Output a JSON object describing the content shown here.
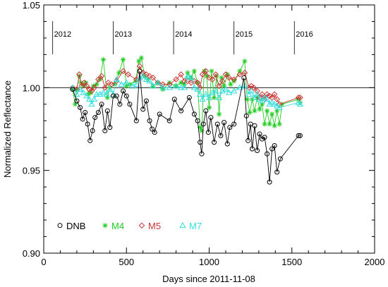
{
  "chart_data": {
    "type": "line",
    "xlabel": "Days since 2011-11-08",
    "ylabel": "Normalized Reflectance",
    "xlim": [
      0,
      2000
    ],
    "ylim": [
      0.9,
      1.05
    ],
    "xticks": [
      0,
      500,
      1000,
      1500,
      2000
    ],
    "yticks": [
      0.9,
      0.95,
      1.0,
      1.05
    ],
    "xtick_labels": [
      "0",
      "500",
      "1000",
      "1500",
      "2000"
    ],
    "ytick_labels": [
      "0.90",
      "0.95",
      "1.00",
      "1.05"
    ],
    "reference_line": 1.0,
    "year_markers": [
      {
        "label": "2012",
        "x": 54
      },
      {
        "label": "2013",
        "x": 420
      },
      {
        "label": "2014",
        "x": 785
      },
      {
        "label": "2015",
        "x": 1150
      },
      {
        "label": "2016",
        "x": 1515
      }
    ],
    "legend_position": "bottom-left",
    "series": [
      {
        "name": "DNB",
        "color": "#000000",
        "marker": "circle",
        "points": [
          [
            175,
            0.999
          ],
          [
            200,
            0.992
          ],
          [
            220,
            0.988
          ],
          [
            235,
            0.981
          ],
          [
            250,
            0.985
          ],
          [
            265,
            0.978
          ],
          [
            280,
            0.968
          ],
          [
            295,
            0.974
          ],
          [
            310,
            0.982
          ],
          [
            330,
            0.985
          ],
          [
            350,
            0.99
          ],
          [
            370,
            0.974
          ],
          [
            385,
            0.986
          ],
          [
            400,
            0.976
          ],
          [
            420,
            0.995
          ],
          [
            440,
            0.995
          ],
          [
            460,
            0.99
          ],
          [
            480,
            0.998
          ],
          [
            500,
            0.995
          ],
          [
            520,
            0.99
          ],
          [
            560,
            0.98
          ],
          [
            580,
            1.01
          ],
          [
            600,
            0.987
          ],
          [
            620,
            0.992
          ],
          [
            640,
            0.98
          ],
          [
            655,
            0.975
          ],
          [
            670,
            0.973
          ],
          [
            700,
            0.984
          ],
          [
            760,
            0.98
          ],
          [
            790,
            0.993
          ],
          [
            830,
            0.986
          ],
          [
            880,
            0.994
          ],
          [
            910,
            0.984
          ],
          [
            930,
            0.98
          ],
          [
            945,
            0.967
          ],
          [
            955,
            0.96
          ],
          [
            965,
            0.978
          ],
          [
            980,
            0.986
          ],
          [
            995,
            0.973
          ],
          [
            1010,
            0.982
          ],
          [
            1030,
            0.967
          ],
          [
            1050,
            0.978
          ],
          [
            1070,
            0.971
          ],
          [
            1090,
            0.979
          ],
          [
            1110,
            0.966
          ],
          [
            1125,
            0.976
          ],
          [
            1150,
            0.978
          ],
          [
            1210,
            1.006
          ],
          [
            1225,
            0.983
          ],
          [
            1235,
            0.968
          ],
          [
            1250,
            0.978
          ],
          [
            1260,
            0.963
          ],
          [
            1275,
            0.977
          ],
          [
            1290,
            0.962
          ],
          [
            1305,
            0.972
          ],
          [
            1320,
            0.969
          ],
          [
            1335,
            0.97
          ],
          [
            1350,
            0.96
          ],
          [
            1365,
            0.943
          ],
          [
            1380,
            0.963
          ],
          [
            1395,
            0.965
          ],
          [
            1410,
            0.949
          ],
          [
            1430,
            0.957
          ],
          [
            1540,
            0.971
          ],
          [
            1550,
            0.971
          ]
        ]
      },
      {
        "name": "M4",
        "color": "#22cc22",
        "marker": "asterisk",
        "points": [
          [
            175,
            0.999
          ],
          [
            190,
            0.99
          ],
          [
            200,
            0.999
          ],
          [
            215,
            1.007
          ],
          [
            225,
            1.003
          ],
          [
            240,
            1.001
          ],
          [
            255,
            1.003
          ],
          [
            270,
            0.996
          ],
          [
            285,
            0.997
          ],
          [
            300,
            1.001
          ],
          [
            320,
            1.002
          ],
          [
            340,
            1.005
          ],
          [
            360,
            1.017
          ],
          [
            385,
            0.994
          ],
          [
            400,
            1.0
          ],
          [
            430,
            1.002
          ],
          [
            455,
            1.009
          ],
          [
            480,
            1.017
          ],
          [
            500,
            1.001
          ],
          [
            520,
            1.002
          ],
          [
            555,
            1.004
          ],
          [
            575,
            1.016
          ],
          [
            590,
            1.018
          ],
          [
            610,
            1.007
          ],
          [
            630,
            1.005
          ],
          [
            660,
            1.001
          ],
          [
            690,
            1.003
          ],
          [
            720,
            0.999
          ],
          [
            760,
            1.003
          ],
          [
            800,
            1.001
          ],
          [
            830,
            1.003
          ],
          [
            850,
            1.002
          ],
          [
            870,
            1.009
          ],
          [
            890,
            1.006
          ],
          [
            910,
            1.01
          ],
          [
            930,
            1.003
          ],
          [
            945,
            0.976
          ],
          [
            955,
            0.974
          ],
          [
            970,
            1.01
          ],
          [
            985,
            1.007
          ],
          [
            1000,
            0.988
          ],
          [
            1015,
            1.01
          ],
          [
            1030,
            0.994
          ],
          [
            1045,
            1.007
          ],
          [
            1060,
            0.984
          ],
          [
            1075,
            1.006
          ],
          [
            1090,
            1.001
          ],
          [
            1110,
            1.008
          ],
          [
            1130,
            1.002
          ],
          [
            1150,
            1.004
          ],
          [
            1185,
            1.01
          ],
          [
            1215,
            1.016
          ],
          [
            1230,
            0.993
          ],
          [
            1245,
            0.985
          ],
          [
            1260,
            0.993
          ],
          [
            1275,
            0.986
          ],
          [
            1290,
            0.994
          ],
          [
            1305,
            0.987
          ],
          [
            1320,
            0.99
          ],
          [
            1335,
            0.978
          ],
          [
            1350,
            0.986
          ],
          [
            1365,
            0.978
          ],
          [
            1380,
            0.984
          ],
          [
            1395,
            0.977
          ],
          [
            1410,
            0.986
          ],
          [
            1425,
            0.978
          ],
          [
            1440,
            0.99
          ],
          [
            1540,
            0.993
          ],
          [
            1550,
            0.991
          ]
        ]
      },
      {
        "name": "M5",
        "color": "#cc3333",
        "marker": "diamond",
        "points": [
          [
            175,
            1.0
          ],
          [
            200,
            0.999
          ],
          [
            215,
            1.008
          ],
          [
            230,
            1.001
          ],
          [
            245,
            1.003
          ],
          [
            260,
            1.001
          ],
          [
            275,
            0.999
          ],
          [
            290,
            0.998
          ],
          [
            305,
            1.0
          ],
          [
            330,
            1.005
          ],
          [
            350,
            1.007
          ],
          [
            370,
            1.0
          ],
          [
            390,
            1.003
          ],
          [
            410,
            1.002
          ],
          [
            440,
            1.004
          ],
          [
            480,
            1.01
          ],
          [
            510,
            1.008
          ],
          [
            560,
            1.005
          ],
          [
            580,
            1.013
          ],
          [
            600,
            1.009
          ],
          [
            620,
            1.008
          ],
          [
            640,
            1.007
          ],
          [
            660,
            1.006
          ],
          [
            690,
            1.003
          ],
          [
            720,
            1.002
          ],
          [
            760,
            1.002
          ],
          [
            800,
            1.005
          ],
          [
            830,
            1.008
          ],
          [
            850,
            1.004
          ],
          [
            870,
            1.004
          ],
          [
            890,
            1.003
          ],
          [
            910,
            1.004
          ],
          [
            930,
            1.003
          ],
          [
            945,
            1.0
          ],
          [
            960,
            1.008
          ],
          [
            980,
            1.01
          ],
          [
            1000,
            1.006
          ],
          [
            1020,
            1.005
          ],
          [
            1040,
            1.008
          ],
          [
            1060,
            1.001
          ],
          [
            1080,
            1.004
          ],
          [
            1100,
            1.008
          ],
          [
            1120,
            1.006
          ],
          [
            1150,
            1.005
          ],
          [
            1185,
            1.008
          ],
          [
            1215,
            1.009
          ],
          [
            1240,
            1.0
          ],
          [
            1255,
            1.001
          ],
          [
            1270,
            1.0
          ],
          [
            1290,
            0.998
          ],
          [
            1305,
            0.994
          ],
          [
            1320,
            0.996
          ],
          [
            1335,
            0.993
          ],
          [
            1350,
            0.996
          ],
          [
            1365,
            0.995
          ],
          [
            1380,
            0.994
          ],
          [
            1395,
            0.996
          ],
          [
            1410,
            0.993
          ],
          [
            1425,
            0.99
          ],
          [
            1540,
            0.994
          ],
          [
            1550,
            0.994
          ]
        ]
      },
      {
        "name": "M7",
        "color": "#33dddd",
        "marker": "triangle",
        "points": [
          [
            175,
            1.0
          ],
          [
            200,
            0.996
          ],
          [
            220,
            0.999
          ],
          [
            240,
            0.997
          ],
          [
            260,
            0.995
          ],
          [
            275,
            0.993
          ],
          [
            290,
            0.99
          ],
          [
            305,
            0.993
          ],
          [
            320,
            0.996
          ],
          [
            340,
            0.996
          ],
          [
            360,
            0.997
          ],
          [
            380,
            0.996
          ],
          [
            400,
            0.999
          ],
          [
            420,
            0.996
          ],
          [
            440,
            1.005
          ],
          [
            470,
            1.002
          ],
          [
            500,
            1.003
          ],
          [
            540,
            1.001
          ],
          [
            560,
            1.002
          ],
          [
            580,
            1.006
          ],
          [
            600,
            1.007
          ],
          [
            620,
            1.005
          ],
          [
            640,
            1.004
          ],
          [
            660,
            1.001
          ],
          [
            690,
            1.003
          ],
          [
            720,
            1.0
          ],
          [
            760,
            1.0
          ],
          [
            800,
            1.001
          ],
          [
            830,
            1.0
          ],
          [
            850,
            1.0
          ],
          [
            870,
            1.007
          ],
          [
            890,
            1.006
          ],
          [
            910,
            1.0
          ],
          [
            930,
            0.999
          ],
          [
            945,
            0.996
          ],
          [
            960,
            0.993
          ],
          [
            980,
            0.996
          ],
          [
            1000,
            0.994
          ],
          [
            1020,
            0.997
          ],
          [
            1040,
            0.998
          ],
          [
            1060,
            0.994
          ],
          [
            1080,
            0.998
          ],
          [
            1100,
            0.999
          ],
          [
            1120,
            0.997
          ],
          [
            1150,
            0.998
          ],
          [
            1185,
            1.0
          ],
          [
            1215,
            1.001
          ],
          [
            1240,
            0.996
          ],
          [
            1255,
            0.998
          ],
          [
            1270,
            0.994
          ],
          [
            1290,
            0.996
          ],
          [
            1305,
            0.993
          ],
          [
            1320,
            0.992
          ],
          [
            1335,
            0.994
          ],
          [
            1350,
            0.993
          ],
          [
            1365,
            0.99
          ],
          [
            1380,
            0.991
          ],
          [
            1395,
            0.99
          ],
          [
            1410,
            0.989
          ],
          [
            1425,
            0.988
          ],
          [
            1540,
            0.991
          ],
          [
            1550,
            0.99
          ]
        ]
      }
    ]
  }
}
